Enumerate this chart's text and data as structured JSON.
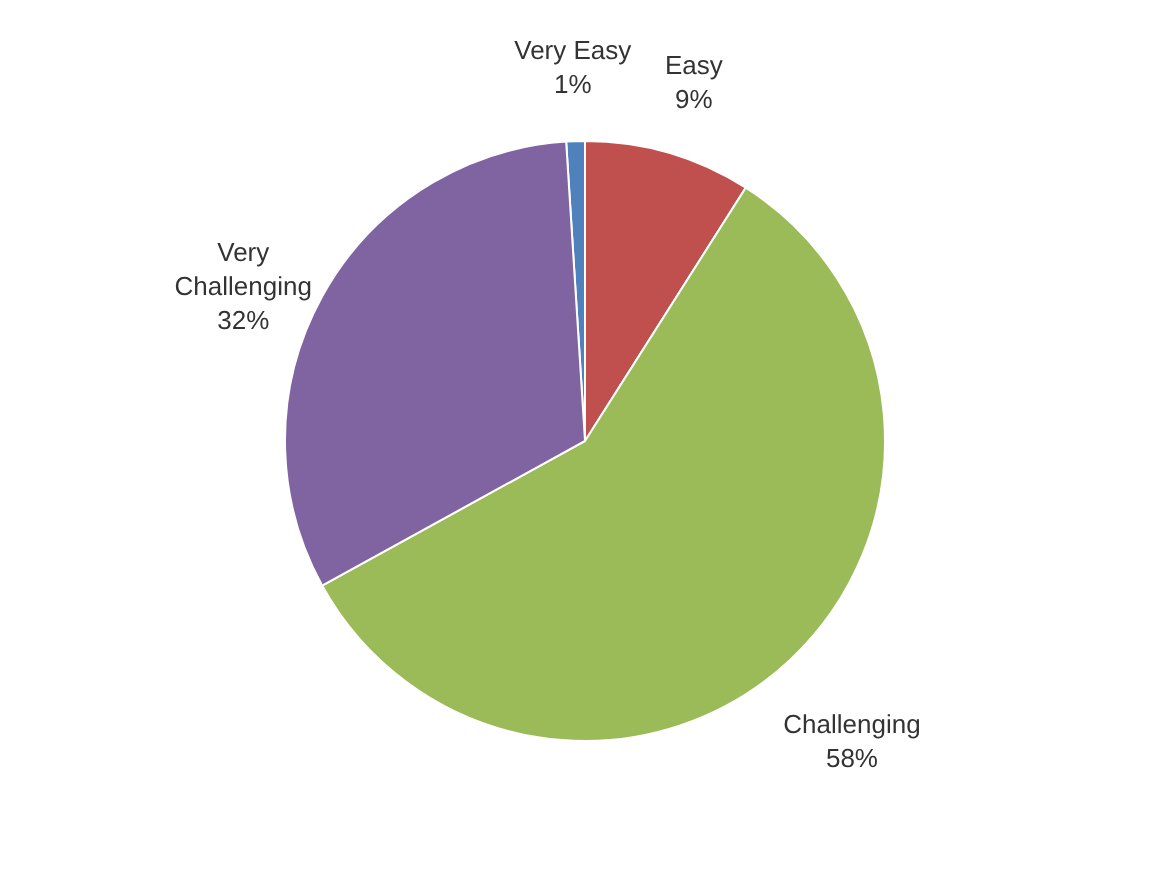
{
  "chart_data": {
    "type": "pie",
    "categories": [
      "Very Easy",
      "Easy",
      "Challenging",
      "Very Challenging"
    ],
    "values": [
      1,
      9,
      58,
      32
    ],
    "colors": [
      "#4f81bd",
      "#c0504d",
      "#9bbb59",
      "#8064a2"
    ],
    "value_labels": [
      "1%",
      "9%",
      "58%",
      "32%"
    ]
  }
}
